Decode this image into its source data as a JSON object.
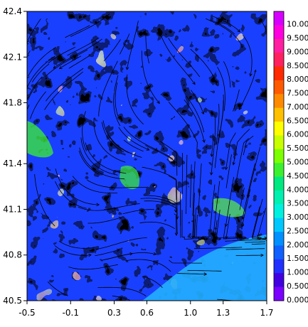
{
  "chart_data": {
    "type": "heatmap",
    "title": "",
    "xlabel": "",
    "ylabel": "",
    "xlim": [
      -0.5,
      1.7
    ],
    "ylim": [
      40.5,
      42.4
    ],
    "x_ticks": [
      "-0.5",
      "-0.1",
      "0.3",
      "0.6",
      "1.0",
      "1.3",
      "1.7"
    ],
    "x_tick_values": [
      -0.5,
      -0.1,
      0.3,
      0.6,
      1.0,
      1.3,
      1.7
    ],
    "y_ticks": [
      "42.4",
      "42.1",
      "41.8",
      "41.4",
      "41.1",
      "40.8",
      "40.5"
    ],
    "y_tick_values": [
      42.4,
      42.1,
      41.8,
      41.4,
      41.1,
      40.8,
      40.5
    ],
    "colorbar": {
      "labels": [
        "10.00",
        "9.500",
        "9.000",
        "8.500",
        "8.000",
        "7.500",
        "7.000",
        "6.500",
        "6.000",
        "5.500",
        "5.000",
        "4.500",
        "4.000",
        "3.500",
        "3.000",
        "2.500",
        "2.000",
        "1.500",
        "1.000",
        "0.500",
        "0.000"
      ],
      "colors": [
        "#d600ff",
        "#ff00e0",
        "#ff1fa0",
        "#ff2060",
        "#ff2a00",
        "#ff5a00",
        "#ff8a00",
        "#ffc000",
        "#ffff00",
        "#c8ff00",
        "#7cff00",
        "#3cf030",
        "#00e880",
        "#00f0b0",
        "#00f0e0",
        "#00c8ff",
        "#0090ff",
        "#1060ff",
        "#2030ff",
        "#4000e0",
        "#7a00ff"
      ]
    },
    "colors": {
      "background_field": "#1a40ff",
      "mid_field": "#0a8cff",
      "high_field": "#00e6d2",
      "peak_field": "#c800ff",
      "streamline": "#000000"
    }
  }
}
